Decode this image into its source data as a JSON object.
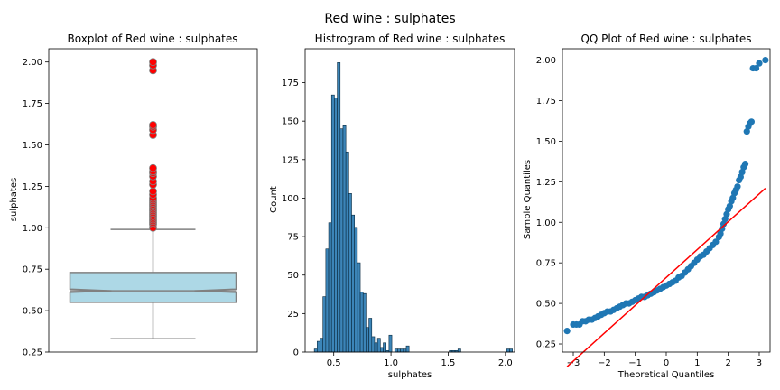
{
  "suptitle": "Red wine : sulphates",
  "chart_data": [
    {
      "type": "boxplot",
      "title": "Boxplot of Red wine : sulphates",
      "ylabel": "sulphates",
      "xlabel": "",
      "ylim": [
        0.25,
        2.08
      ],
      "yticks": [
        0.25,
        0.5,
        0.75,
        1.0,
        1.25,
        1.5,
        1.75,
        2.0
      ],
      "ytick_labels": [
        "0.25",
        "0.50",
        "0.75",
        "1.00",
        "1.25",
        "1.50",
        "1.75",
        "2.00"
      ],
      "stats": {
        "whisker_low": 0.33,
        "q1": 0.55,
        "median": 0.62,
        "q3": 0.73,
        "whisker_high": 0.99,
        "notch_low": 0.61,
        "notch_high": 0.63
      },
      "outliers": [
        1.0,
        1.02,
        1.03,
        1.04,
        1.05,
        1.06,
        1.07,
        1.08,
        1.09,
        1.1,
        1.11,
        1.12,
        1.13,
        1.14,
        1.15,
        1.16,
        1.17,
        1.18,
        1.2,
        1.22,
        1.26,
        1.28,
        1.31,
        1.33,
        1.34,
        1.36,
        1.56,
        1.59,
        1.61,
        1.62,
        1.95,
        1.98,
        2.0
      ],
      "box_color": "#add8e6",
      "outlier_color": "#ff0000"
    },
    {
      "type": "histogram",
      "title": "Histrogram of Red wine : sulphates",
      "xlabel": "sulphates",
      "ylabel": "Count",
      "xlim": [
        0.25,
        2.08
      ],
      "ylim": [
        0,
        197
      ],
      "xticks": [
        0.5,
        1.0,
        1.5,
        2.0
      ],
      "xtick_labels": [
        "0.5",
        "1.0",
        "1.5",
        "2.0"
      ],
      "yticks": [
        0,
        25,
        50,
        75,
        100,
        125,
        150,
        175
      ],
      "bin_width": 0.0251,
      "bin_start": 0.33,
      "counts": [
        2,
        7,
        9,
        36,
        67,
        84,
        167,
        165,
        188,
        145,
        147,
        130,
        103,
        89,
        81,
        58,
        39,
        38,
        16,
        22,
        10,
        6,
        9,
        3,
        6,
        1,
        11,
        0,
        2,
        2,
        2,
        2,
        4,
        0,
        0,
        0,
        0,
        0,
        0,
        0,
        0,
        0,
        0,
        0,
        0,
        0,
        0,
        1,
        1,
        1,
        2,
        0,
        0,
        0,
        0,
        0,
        0,
        0,
        0,
        0,
        0,
        0,
        0,
        0,
        0,
        0,
        0,
        2,
        2
      ],
      "bar_color": "#3c85b8"
    },
    {
      "type": "scatter",
      "title": "QQ Plot of Red wine : sulphates",
      "xlabel": "Theoretical Quantiles",
      "ylabel": "Sample Quantiles",
      "xlim": [
        -3.35,
        3.35
      ],
      "ylim": [
        0.2,
        2.07
      ],
      "xticks": [
        -3,
        -2,
        -1,
        0,
        1,
        2,
        3
      ],
      "xtick_labels": [
        "−3",
        "−2",
        "−1",
        "0",
        "1",
        "2",
        "3"
      ],
      "yticks": [
        0.25,
        0.5,
        0.75,
        1.0,
        1.25,
        1.5,
        1.75,
        2.0
      ],
      "ytick_labels": [
        "0.25",
        "0.50",
        "0.75",
        "1.00",
        "1.25",
        "1.50",
        "1.75",
        "2.00"
      ],
      "points": [
        [
          -3.2,
          0.33
        ],
        [
          -3.0,
          0.37
        ],
        [
          -2.9,
          0.37
        ],
        [
          -2.8,
          0.37
        ],
        [
          -2.7,
          0.39
        ],
        [
          -2.6,
          0.39
        ],
        [
          -2.5,
          0.4
        ],
        [
          -2.4,
          0.4
        ],
        [
          -2.3,
          0.41
        ],
        [
          -2.2,
          0.42
        ],
        [
          -2.1,
          0.43
        ],
        [
          -2.0,
          0.44
        ],
        [
          -1.9,
          0.45
        ],
        [
          -1.8,
          0.45
        ],
        [
          -1.7,
          0.46
        ],
        [
          -1.6,
          0.47
        ],
        [
          -1.5,
          0.48
        ],
        [
          -1.4,
          0.49
        ],
        [
          -1.3,
          0.5
        ],
        [
          -1.2,
          0.5
        ],
        [
          -1.1,
          0.51
        ],
        [
          -1.0,
          0.52
        ],
        [
          -0.9,
          0.53
        ],
        [
          -0.8,
          0.54
        ],
        [
          -0.7,
          0.54
        ],
        [
          -0.6,
          0.55
        ],
        [
          -0.5,
          0.56
        ],
        [
          -0.4,
          0.57
        ],
        [
          -0.3,
          0.58
        ],
        [
          -0.2,
          0.59
        ],
        [
          -0.1,
          0.6
        ],
        [
          0.0,
          0.61
        ],
        [
          0.1,
          0.62
        ],
        [
          0.2,
          0.63
        ],
        [
          0.3,
          0.64
        ],
        [
          0.4,
          0.66
        ],
        [
          0.5,
          0.67
        ],
        [
          0.6,
          0.69
        ],
        [
          0.7,
          0.71
        ],
        [
          0.8,
          0.73
        ],
        [
          0.9,
          0.75
        ],
        [
          1.0,
          0.77
        ],
        [
          1.1,
          0.79
        ],
        [
          1.2,
          0.8
        ],
        [
          1.3,
          0.82
        ],
        [
          1.4,
          0.84
        ],
        [
          1.5,
          0.86
        ],
        [
          1.6,
          0.88
        ],
        [
          1.7,
          0.91
        ],
        [
          1.75,
          0.93
        ],
        [
          1.8,
          0.96
        ],
        [
          1.85,
          0.99
        ],
        [
          1.9,
          1.02
        ],
        [
          1.95,
          1.05
        ],
        [
          2.0,
          1.08
        ],
        [
          2.05,
          1.1
        ],
        [
          2.1,
          1.13
        ],
        [
          2.15,
          1.15
        ],
        [
          2.2,
          1.18
        ],
        [
          2.25,
          1.2
        ],
        [
          2.3,
          1.22
        ],
        [
          2.35,
          1.26
        ],
        [
          2.4,
          1.28
        ],
        [
          2.45,
          1.31
        ],
        [
          2.5,
          1.34
        ],
        [
          2.55,
          1.36
        ],
        [
          2.6,
          1.56
        ],
        [
          2.65,
          1.59
        ],
        [
          2.7,
          1.61
        ],
        [
          2.75,
          1.62
        ],
        [
          2.8,
          1.95
        ],
        [
          2.9,
          1.95
        ],
        [
          3.0,
          1.98
        ],
        [
          3.2,
          2.0
        ]
      ],
      "line": {
        "x": [
          -3.2,
          3.2
        ],
        "y": [
          0.11,
          1.21
        ]
      },
      "point_color": "#1f77b4",
      "line_color": "#ff0000"
    }
  ]
}
